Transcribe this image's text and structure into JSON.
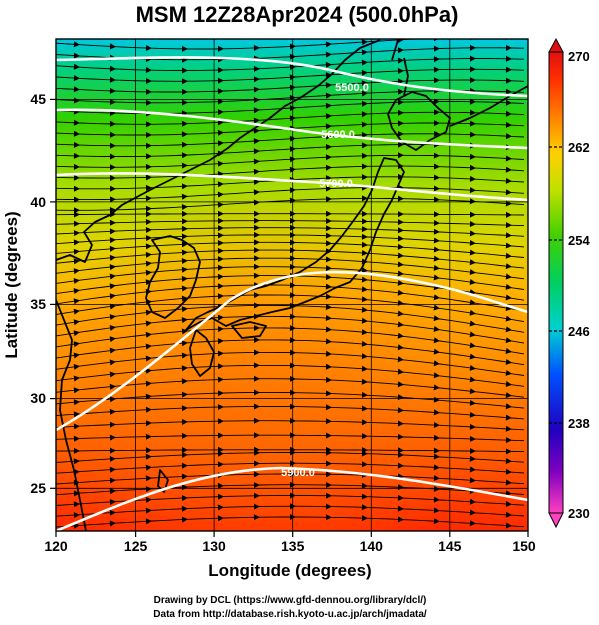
{
  "title": "MSM 12Z28Apr2024 (500.0hPa)",
  "x_axis": {
    "label": "Longitude (degrees)",
    "ticks": [
      "120",
      "125",
      "130",
      "135",
      "140",
      "145",
      "150"
    ],
    "range": [
      120,
      150
    ]
  },
  "y_axis": {
    "label": "Latitude  (degrees)",
    "ticks": [
      "25",
      "30",
      "35",
      "40",
      "45"
    ],
    "range": [
      22.5,
      47.6
    ]
  },
  "colorbar": {
    "ticks": [
      "270",
      "262",
      "254",
      "246",
      "238",
      "230"
    ],
    "range": [
      230,
      270
    ],
    "colors": [
      "#ff40c0",
      "#8000c0",
      "#2000c0",
      "#0060ff",
      "#00d0d0",
      "#00d060",
      "#40d000",
      "#c0e000",
      "#ffd000",
      "#ff8000",
      "#ff3000",
      "#e01010"
    ]
  },
  "contours": [
    {
      "label": "5500.0"
    },
    {
      "label": "5600.0"
    },
    {
      "label": "5700.0"
    },
    {
      "label": "5900.0"
    }
  ],
  "credits": [
    "Drawing by DCL (https://www.gfd-dennou.org/library/dcl/)",
    "Data from http://database.rish.kyoto-u.ac.jp/arch/jmadata/"
  ]
}
